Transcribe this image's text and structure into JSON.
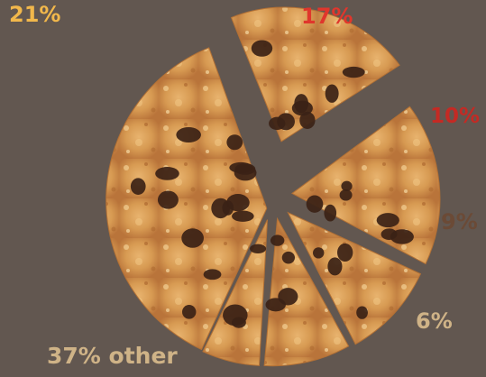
{
  "chart_data": {
    "type": "pie",
    "title": "",
    "slices": [
      {
        "label": "21%",
        "value": 21,
        "color": "#f2b84b"
      },
      {
        "label": "17%",
        "value": 17,
        "color": "#e0362c"
      },
      {
        "label": "10%",
        "value": 10,
        "color": "#c42a24"
      },
      {
        "label": "9%",
        "value": 9,
        "color": "#6b4a36"
      },
      {
        "label": "6%",
        "value": 6,
        "color": "#cfb387"
      },
      {
        "label": "37% other",
        "value": 37,
        "color": "#cfb387"
      }
    ],
    "legend": "none",
    "slice_fill": "chocolate-chip cookie"
  }
}
